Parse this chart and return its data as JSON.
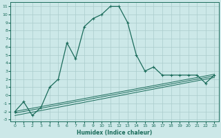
{
  "xlabel": "Humidex (Indice chaleur)",
  "bg_color": "#cce8e8",
  "grid_color": "#aacccc",
  "line_color": "#1a6b5a",
  "xlim": [
    -0.5,
    23.5
  ],
  "ylim": [
    -3.2,
    11.5
  ],
  "xticks": [
    0,
    1,
    2,
    3,
    4,
    5,
    6,
    7,
    8,
    9,
    10,
    11,
    12,
    13,
    14,
    15,
    16,
    17,
    18,
    19,
    20,
    21,
    22,
    23
  ],
  "yticks": [
    -3,
    -2,
    -1,
    0,
    1,
    2,
    3,
    4,
    5,
    6,
    7,
    8,
    9,
    10,
    11
  ],
  "main_x": [
    0,
    1,
    2,
    3,
    4,
    5,
    6,
    7,
    8,
    9,
    10,
    11,
    12,
    13,
    14,
    15,
    16,
    17,
    18,
    19,
    20,
    21,
    22,
    23
  ],
  "main_y": [
    -2.0,
    -0.8,
    -2.5,
    -1.5,
    1.0,
    2.0,
    6.5,
    4.5,
    8.5,
    9.5,
    10.0,
    11.0,
    11.0,
    9.0,
    5.0,
    3.0,
    3.5,
    2.5,
    2.5,
    2.5,
    2.5,
    2.5,
    1.5,
    2.5
  ],
  "line1_x": [
    0,
    23
  ],
  "line1_y": [
    -2.0,
    2.6
  ],
  "line2_x": [
    0,
    23
  ],
  "line2_y": [
    -2.2,
    2.4
  ],
  "line3_x": [
    0,
    23
  ],
  "line3_y": [
    -2.5,
    2.2
  ]
}
